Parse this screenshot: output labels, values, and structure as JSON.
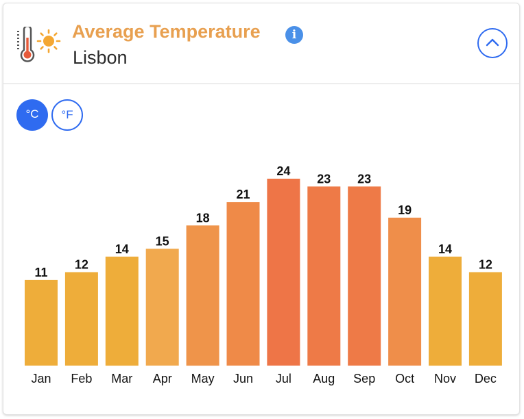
{
  "header": {
    "title": "Average Temperature",
    "city": "Lisbon",
    "info_glyph": "i",
    "icons": [
      "thermometer-sun-icon",
      "info-icon",
      "chevron-up-icon"
    ]
  },
  "units": {
    "celsius_label": "°C",
    "fahrenheit_label": "°F",
    "selected": "celsius"
  },
  "colors": {
    "title": "#E8A050",
    "accent": "#2F6BF0",
    "info": "#4A90E8",
    "bar_cool": "#EEAD3A",
    "bar_mid": "#EF944A",
    "bar_hot": "#EE7547"
  },
  "chart_data": {
    "type": "bar",
    "categories": [
      "Jan",
      "Feb",
      "Mar",
      "Apr",
      "May",
      "Jun",
      "Jul",
      "Aug",
      "Sep",
      "Oct",
      "Nov",
      "Dec"
    ],
    "values": [
      11,
      12,
      14,
      15,
      18,
      21,
      24,
      23,
      23,
      19,
      14,
      12
    ],
    "bar_colors": [
      "#EEAD3A",
      "#EEAD3A",
      "#EEAD3A",
      "#F1A94E",
      "#EF944A",
      "#EF8A48",
      "#EE7547",
      "#EE7A47",
      "#EE7A47",
      "#EF8E4A",
      "#EEAD3A",
      "#EEAD3A"
    ],
    "ylim": [
      0,
      24
    ],
    "grid": false,
    "legend": "none"
  }
}
